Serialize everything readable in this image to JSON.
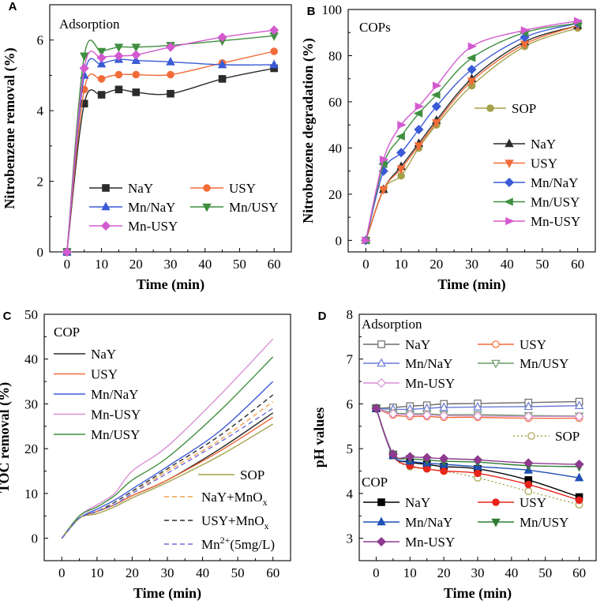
{
  "chart_data": [
    {
      "type": "line",
      "panel": "A",
      "title": "Adsorption",
      "xlabel": "Time (min)",
      "ylabel": "Nitrobenzene removal (%)",
      "xlim": [
        -5,
        65
      ],
      "ylim": [
        0,
        7
      ],
      "xticks": [
        0,
        10,
        20,
        30,
        40,
        50,
        60
      ],
      "yticks": [
        0,
        2,
        4,
        6
      ],
      "x": [
        0,
        5,
        10,
        15,
        20,
        30,
        45,
        60
      ],
      "series": [
        {
          "name": "NaY",
          "color": "#2b2b2b",
          "marker": "square",
          "values": [
            0,
            4.2,
            4.45,
            4.6,
            4.52,
            4.48,
            4.9,
            5.2
          ]
        },
        {
          "name": "USY",
          "color": "#f26c3a",
          "marker": "circle",
          "values": [
            0,
            4.6,
            4.9,
            5.02,
            5.02,
            5.02,
            5.35,
            5.68
          ]
        },
        {
          "name": "Mn/NaY",
          "color": "#3b5bd6",
          "marker": "triangle-up",
          "values": [
            0,
            5.0,
            5.32,
            5.45,
            5.42,
            5.38,
            5.3,
            5.3
          ]
        },
        {
          "name": "Mn/USY",
          "color": "#3f8f3f",
          "marker": "triangle-down",
          "values": [
            0,
            5.55,
            5.68,
            5.8,
            5.8,
            5.85,
            5.98,
            6.12
          ]
        },
        {
          "name": "Mn-USY",
          "color": "#d45ad0",
          "marker": "diamond",
          "values": [
            0,
            5.2,
            5.5,
            5.55,
            5.58,
            5.8,
            6.08,
            6.28
          ]
        }
      ],
      "legend_columns": [
        [
          "NaY",
          "USY"
        ],
        [
          "Mn/NaY",
          "Mn/USY"
        ],
        [
          "Mn-USY"
        ]
      ]
    },
    {
      "type": "line",
      "panel": "B",
      "title": "COPs",
      "xlabel": "Time (min)",
      "ylabel": "Nitrobenzene degradation (%)",
      "xlim": [
        -5,
        65
      ],
      "ylim": [
        -5,
        100
      ],
      "xticks": [
        0,
        10,
        20,
        30,
        40,
        50,
        60
      ],
      "yticks": [
        0,
        20,
        40,
        60,
        80,
        100
      ],
      "x": [
        0,
        5,
        10,
        15,
        20,
        30,
        45,
        60
      ],
      "series": [
        {
          "name": "SOP",
          "color": "#a5a04a",
          "marker": "circle",
          "values": [
            0,
            22,
            28,
            40,
            50,
            67,
            84,
            92
          ]
        },
        {
          "name": "NaY",
          "color": "#2b2b2b",
          "marker": "triangle-up",
          "values": [
            0,
            22,
            32,
            42,
            52,
            70,
            86,
            93
          ]
        },
        {
          "name": "USY",
          "color": "#f26c3a",
          "marker": "triangle-down",
          "values": [
            0,
            22,
            31,
            41,
            51,
            69,
            85,
            93
          ]
        },
        {
          "name": "Mn/NaY",
          "color": "#3b5bd6",
          "marker": "diamond",
          "values": [
            0,
            30,
            38,
            48,
            58,
            74,
            88,
            94
          ]
        },
        {
          "name": "Mn/USY",
          "color": "#3f8f3f",
          "marker": "triangle-left",
          "values": [
            0,
            33,
            45,
            55,
            63,
            79,
            90,
            94
          ]
        },
        {
          "name": "Mn-USY",
          "color": "#d45ad0",
          "marker": "triangle-right",
          "values": [
            0,
            35,
            50,
            58,
            67,
            84,
            91,
            95
          ]
        }
      ]
    },
    {
      "type": "line",
      "panel": "C",
      "title": "COP",
      "xlabel": "Time (min)",
      "ylabel": "TOC removal (%)",
      "xlim": [
        -5,
        65
      ],
      "ylim": [
        -5,
        50
      ],
      "xticks": [
        0,
        10,
        20,
        30,
        40,
        50,
        60
      ],
      "yticks": [
        0,
        10,
        20,
        30,
        40,
        50
      ],
      "x": [
        0,
        5,
        10,
        15,
        20,
        30,
        45,
        60
      ],
      "series": [
        {
          "name": "NaY",
          "color": "#2b2b2b",
          "style": "solid",
          "values": [
            0,
            4.5,
            6,
            7.5,
            9.5,
            13,
            20,
            28
          ]
        },
        {
          "name": "USY",
          "color": "#f26c3a",
          "style": "solid",
          "values": [
            0,
            4.5,
            6,
            7.5,
            9.5,
            13,
            19.5,
            27
          ]
        },
        {
          "name": "Mn/NaY",
          "color": "#3b5bd6",
          "style": "solid",
          "values": [
            0,
            4.5,
            6.5,
            8.5,
            11,
            16,
            24,
            35
          ]
        },
        {
          "name": "Mn-USY",
          "color": "#d98fd6",
          "style": "solid",
          "values": [
            0,
            5,
            7.5,
            10,
            15,
            20.5,
            32,
            44.5
          ]
        },
        {
          "name": "Mn/USY",
          "color": "#3f8f3f",
          "style": "solid",
          "values": [
            0,
            5,
            7,
            9.5,
            13,
            18,
            28.5,
            40.5
          ]
        },
        {
          "name": "SOP",
          "color": "#a5a04a",
          "style": "solid",
          "values": [
            0,
            4.5,
            5.5,
            7,
            9,
            12.5,
            18.5,
            25.5
          ]
        },
        {
          "name": "NaY+MnOx",
          "color": "#f4a04a",
          "style": "dashed",
          "values": [
            0,
            4.5,
            6,
            7.5,
            10,
            15,
            22,
            30.5
          ]
        },
        {
          "name": "USY+MnOx",
          "color": "#2b2b2b",
          "style": "dashed",
          "values": [
            0,
            4.5,
            6,
            8,
            10.5,
            15.5,
            23,
            32
          ]
        },
        {
          "name": "Mn2+(5mg/L)",
          "color": "#6a6ad6",
          "style": "dashed",
          "values": [
            0,
            4.5,
            6,
            7.5,
            10,
            14.5,
            21.5,
            29
          ]
        }
      ],
      "legend_labels_display": {
        "NaY+MnOx": [
          "NaY+MnO",
          "x"
        ],
        "USY+MnOx": [
          "USY+MnO",
          "x"
        ],
        "Mn2+(5mg/L)": [
          "Mn",
          "2+",
          "(5mg/L)"
        ]
      }
    },
    {
      "type": "line",
      "panel": "D",
      "xlabel": "Time (min)",
      "ylabel": "pH values",
      "xlim": [
        -5,
        65
      ],
      "ylim": [
        2.5,
        8
      ],
      "xticks": [
        0,
        10,
        20,
        30,
        40,
        50,
        60
      ],
      "yticks": [
        3,
        4,
        5,
        6,
        7,
        8
      ],
      "x": [
        0,
        5,
        10,
        15,
        20,
        30,
        45,
        60
      ],
      "groups": [
        {
          "title": "Adsorption",
          "series": [
            {
              "name": "NaY",
              "color": "#6b6b6b",
              "marker": "square-open",
              "values": [
                5.9,
                5.92,
                5.95,
                5.97,
                6.0,
                6.01,
                6.03,
                6.05
              ]
            },
            {
              "name": "USY",
              "color": "#f26c3a",
              "marker": "circle-open",
              "values": [
                5.9,
                5.75,
                5.72,
                5.72,
                5.7,
                5.7,
                5.68,
                5.68
              ]
            },
            {
              "name": "Mn/NaY",
              "color": "#6a7ad6",
              "marker": "triangle-up-open",
              "values": [
                5.9,
                5.88,
                5.88,
                5.9,
                5.92,
                5.93,
                5.94,
                5.96
              ]
            },
            {
              "name": "Mn/USY",
              "color": "#6a9a6a",
              "marker": "triangle-down-open",
              "values": [
                5.9,
                5.8,
                5.78,
                5.78,
                5.76,
                5.76,
                5.74,
                5.73
              ]
            },
            {
              "name": "Mn-USY",
              "color": "#d98fd6",
              "marker": "diamond-open",
              "values": [
                5.9,
                5.78,
                5.76,
                5.75,
                5.74,
                5.73,
                5.72,
                5.72
              ]
            },
            {
              "name": "SOP",
              "color": "#a5a04a",
              "marker": "circle-open",
              "style": "dotted",
              "values": [
                5.9,
                4.85,
                4.6,
                4.55,
                4.5,
                4.35,
                4.05,
                3.75
              ]
            }
          ]
        },
        {
          "title": "COP",
          "series": [
            {
              "name": "NaY",
              "color": "#000000",
              "marker": "square",
              "values": [
                5.9,
                4.85,
                4.7,
                4.65,
                4.6,
                4.55,
                4.3,
                3.92
              ]
            },
            {
              "name": "USY",
              "color": "#e8241a",
              "marker": "circle",
              "values": [
                5.9,
                4.85,
                4.62,
                4.55,
                4.5,
                4.45,
                4.2,
                3.85
              ]
            },
            {
              "name": "Mn/NaY",
              "color": "#1f4fb4",
              "marker": "triangle-up",
              "values": [
                5.9,
                4.85,
                4.72,
                4.68,
                4.65,
                4.6,
                4.52,
                4.35
              ]
            },
            {
              "name": "Mn/USY",
              "color": "#2e7d32",
              "marker": "triangle-down",
              "values": [
                5.9,
                4.88,
                4.78,
                4.75,
                4.72,
                4.7,
                4.62,
                4.6
              ]
            },
            {
              "name": "Mn-USY",
              "color": "#8e3a8e",
              "marker": "diamond",
              "values": [
                5.9,
                4.88,
                4.82,
                4.8,
                4.78,
                4.75,
                4.68,
                4.65
              ]
            }
          ]
        }
      ]
    }
  ]
}
